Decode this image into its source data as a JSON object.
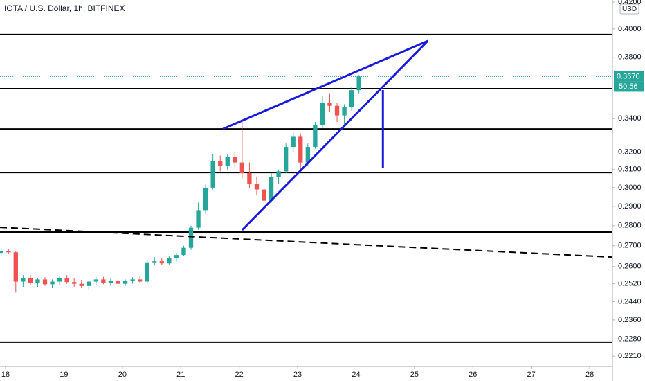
{
  "chart_data": {
    "type": "candlestick",
    "title": "IOTA / U.S. Dollar, 1h, BITFINEX",
    "currency": "USD",
    "log": true,
    "up_color": "#26a69a",
    "down_color": "#ef5350",
    "x": [
      17.925,
      18.05,
      18.175,
      18.3,
      18.425,
      18.55,
      18.675,
      18.8,
      18.925,
      19.05,
      19.175,
      19.3,
      19.425,
      19.55,
      19.675,
      19.8,
      19.925,
      20.05,
      20.175,
      20.3,
      20.425,
      20.55,
      20.675,
      20.8,
      20.925,
      21.05,
      21.175,
      21.3,
      21.425,
      21.55,
      21.675,
      21.8,
      21.925,
      22.05,
      22.175,
      22.3,
      22.425,
      22.55,
      22.675,
      22.8,
      22.925,
      23.05,
      23.175,
      23.3,
      23.425,
      23.55,
      23.675,
      23.8,
      23.925,
      24.05
    ],
    "open": [
      0.2665,
      0.2675,
      0.2668,
      0.253,
      0.2545,
      0.2525,
      0.254,
      0.2518,
      0.253,
      0.2545,
      0.2528,
      0.252,
      0.251,
      0.253,
      0.254,
      0.2525,
      0.2535,
      0.252,
      0.2532,
      0.254,
      0.253,
      0.262,
      0.2625,
      0.2615,
      0.264,
      0.2655,
      0.269,
      0.279,
      0.288,
      0.3,
      0.315,
      0.312,
      0.317,
      0.314,
      0.308,
      0.302,
      0.299,
      0.293,
      0.306,
      0.309,
      0.323,
      0.329,
      0.314,
      0.323,
      0.336,
      0.35,
      0.348,
      0.342,
      0.347,
      0.358
    ],
    "high": [
      0.269,
      0.2685,
      0.2672,
      0.256,
      0.256,
      0.2545,
      0.255,
      0.254,
      0.2555,
      0.256,
      0.2545,
      0.2538,
      0.2535,
      0.255,
      0.2552,
      0.2545,
      0.2548,
      0.254,
      0.255,
      0.2555,
      0.263,
      0.2645,
      0.264,
      0.265,
      0.2665,
      0.27,
      0.28,
      0.292,
      0.302,
      0.319,
      0.318,
      0.319,
      0.32,
      0.338,
      0.314,
      0.306,
      0.3,
      0.308,
      0.31,
      0.325,
      0.332,
      0.331,
      0.325,
      0.338,
      0.354,
      0.356,
      0.35,
      0.349,
      0.36,
      0.368
    ],
    "low": [
      0.2655,
      0.266,
      0.248,
      0.2505,
      0.2515,
      0.2505,
      0.251,
      0.25,
      0.2515,
      0.252,
      0.2505,
      0.25,
      0.2495,
      0.2515,
      0.2518,
      0.251,
      0.2512,
      0.251,
      0.252,
      0.2522,
      0.2525,
      0.2605,
      0.2608,
      0.261,
      0.2625,
      0.265,
      0.268,
      0.278,
      0.286,
      0.299,
      0.309,
      0.31,
      0.311,
      0.305,
      0.3,
      0.296,
      0.29,
      0.292,
      0.302,
      0.308,
      0.32,
      0.309,
      0.312,
      0.322,
      0.334,
      0.344,
      0.338,
      0.336,
      0.345,
      0.356
    ],
    "close": [
      0.2675,
      0.2668,
      0.253,
      0.2545,
      0.2525,
      0.254,
      0.2518,
      0.253,
      0.2545,
      0.2528,
      0.252,
      0.251,
      0.253,
      0.254,
      0.2525,
      0.2535,
      0.252,
      0.2532,
      0.254,
      0.253,
      0.262,
      0.2625,
      0.2615,
      0.264,
      0.2655,
      0.269,
      0.279,
      0.288,
      0.3,
      0.315,
      0.312,
      0.317,
      0.314,
      0.308,
      0.302,
      0.299,
      0.293,
      0.306,
      0.309,
      0.323,
      0.329,
      0.314,
      0.323,
      0.336,
      0.35,
      0.348,
      0.342,
      0.347,
      0.358,
      0.367
    ],
    "xlim": [
      17.905,
      28.39
    ],
    "xticks": [
      18,
      19,
      20,
      21,
      22,
      23,
      24,
      25,
      26,
      27,
      28
    ],
    "ylim": [
      0.2172,
      0.4216
    ],
    "yticks": [
      {
        "value": 0.42,
        "label": "0.4200"
      },
      {
        "value": 0.4,
        "label": "0.4000"
      },
      {
        "value": 0.38,
        "label": "0.3800"
      },
      {
        "value": 0.34,
        "label": "0.3400"
      },
      {
        "value": 0.32,
        "label": "0.3200"
      },
      {
        "value": 0.31,
        "label": "0.3100"
      },
      {
        "value": 0.3,
        "label": "0.3000"
      },
      {
        "value": 0.29,
        "label": "0.2900"
      },
      {
        "value": 0.28,
        "label": "0.2800"
      },
      {
        "value": 0.27,
        "label": "0.2700"
      },
      {
        "value": 0.26,
        "label": "0.2600"
      },
      {
        "value": 0.252,
        "label": "0.2520"
      },
      {
        "value": 0.244,
        "label": "0.2440"
      },
      {
        "value": 0.236,
        "label": "0.2360"
      },
      {
        "value": 0.228,
        "label": "0.2280"
      },
      {
        "value": 0.221,
        "label": "0.2210"
      }
    ],
    "hlines": [
      0.396,
      0.359,
      0.3337,
      0.3083,
      0.2768,
      0.2267
    ],
    "hline_color": "#000000",
    "trendlines": [
      {
        "x": [
          21.72,
          25.23
        ],
        "y": [
          0.3337,
          0.3915
        ],
        "color": "#1a1adb",
        "dashed": false
      },
      {
        "x": [
          22.05,
          25.23
        ],
        "y": [
          0.2778,
          0.3915
        ],
        "color": "#1a1adb",
        "dashed": false
      },
      {
        "x": [
          24.46,
          24.46
        ],
        "y": [
          0.3581,
          0.311
        ],
        "color": "#1a1adb",
        "dashed": false
      },
      {
        "x": [
          17.905,
          28.39
        ],
        "y": [
          0.2792,
          0.2645
        ],
        "color": "#000000",
        "dashed": true
      }
    ],
    "last_price": {
      "value": 0.367,
      "label": "0.3670"
    },
    "countdown": "50:56"
  }
}
